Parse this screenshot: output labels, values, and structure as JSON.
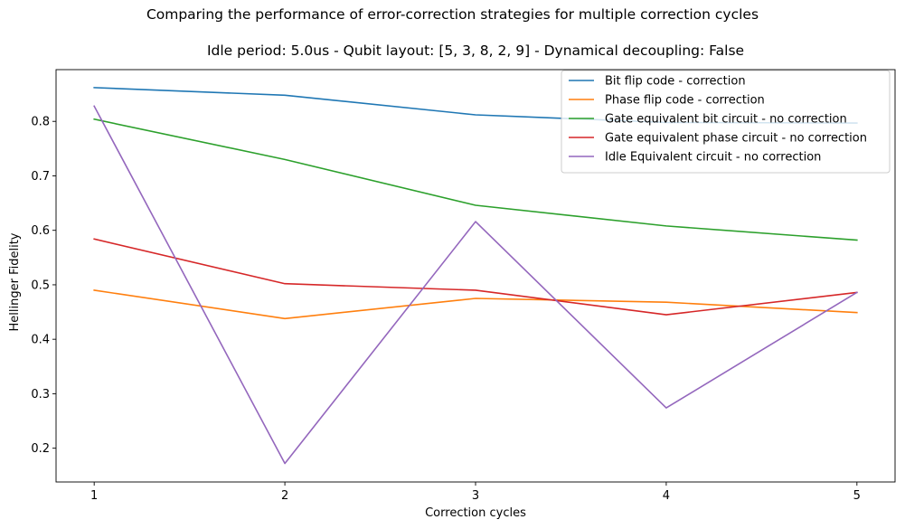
{
  "figure": {
    "suptitle": "Comparing the performance of error-correction strategies for multiple correction cycles"
  },
  "chart_data": {
    "type": "line",
    "title": "Idle period: 5.0us - Qubit layout: [5, 3, 8, 2, 9] - Dynamical decoupling: False",
    "xlabel": "Correction cycles",
    "ylabel": "Hellinger Fidelity",
    "x": [
      1,
      2,
      3,
      4,
      5
    ],
    "xticks": [
      "1",
      "2",
      "3",
      "4",
      "5"
    ],
    "xlim": [
      0.8,
      5.2
    ],
    "ylim": [
      0.138,
      0.895
    ],
    "yticks": [
      "0.2",
      "0.3",
      "0.4",
      "0.5",
      "0.6",
      "0.7",
      "0.8"
    ],
    "ytick_values": [
      0.2,
      0.3,
      0.4,
      0.5,
      0.6,
      0.7,
      0.8
    ],
    "grid": false,
    "legend_position": "top-right",
    "series": [
      {
        "name": "Bit flip code - correction",
        "color": "#1f77b4",
        "values": [
          0.862,
          0.848,
          0.812,
          0.798,
          0.797
        ]
      },
      {
        "name": "Phase flip code - correction",
        "color": "#ff7f0e",
        "values": [
          0.49,
          0.438,
          0.475,
          0.468,
          0.449
        ]
      },
      {
        "name": "Gate equivalent bit circuit - no correction",
        "color": "#2ca02c",
        "values": [
          0.804,
          0.73,
          0.646,
          0.608,
          0.582
        ]
      },
      {
        "name": "Gate equivalent phase circuit - no correction",
        "color": "#d62728",
        "values": [
          0.584,
          0.502,
          0.49,
          0.445,
          0.486
        ]
      },
      {
        "name": "Idle Equivalent circuit - no correction",
        "color": "#9467bd",
        "values": [
          0.828,
          0.172,
          0.616,
          0.274,
          0.486
        ]
      }
    ]
  }
}
